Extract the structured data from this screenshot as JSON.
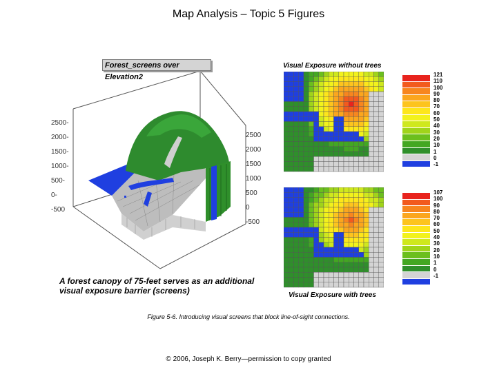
{
  "page": {
    "title": "Map Analysis – Topic 5 Figures",
    "figure_caption": "Figure 5-6. Introducing visual screens that block line-of-sight connections.",
    "copyright": "© 2006, Joseph K. Berry—permission to copy granted"
  },
  "surface_panel": {
    "label": "Forest_screens over Elevation2",
    "left_ticks": [
      "2500-",
      "2000-",
      "1500-",
      "1000-",
      "500-",
      "0-",
      "-500"
    ],
    "right_ticks": [
      "2500",
      "2000",
      "1500",
      "1000",
      "500",
      "0",
      "-500"
    ],
    "note": "A forest canopy of 75-feet serves as an additional visual exposure barrier (screens)"
  },
  "maps": {
    "top_caption": "Visual Exposure without trees",
    "bottom_caption": "Visual Exposure with trees",
    "top_legend": [
      "121",
      "110",
      "100",
      "90",
      "80",
      "70",
      "60",
      "50",
      "40",
      "30",
      "20",
      "10",
      "1",
      "0",
      "-1"
    ],
    "bottom_legend": [
      "107",
      "100",
      "90",
      "80",
      "70",
      "60",
      "50",
      "40",
      "30",
      "20",
      "10",
      "1",
      "0",
      "-1"
    ],
    "legend_colors": [
      "#e8231d",
      "#f25a1e",
      "#f7861f",
      "#fba61e",
      "#fdc41e",
      "#fde61b",
      "#f2f21c",
      "#cfe81d",
      "#a0d41a",
      "#6bbf1d",
      "#43a722",
      "#2f8f2b",
      "#d4d4d4",
      "#1f3fe0"
    ]
  }
}
